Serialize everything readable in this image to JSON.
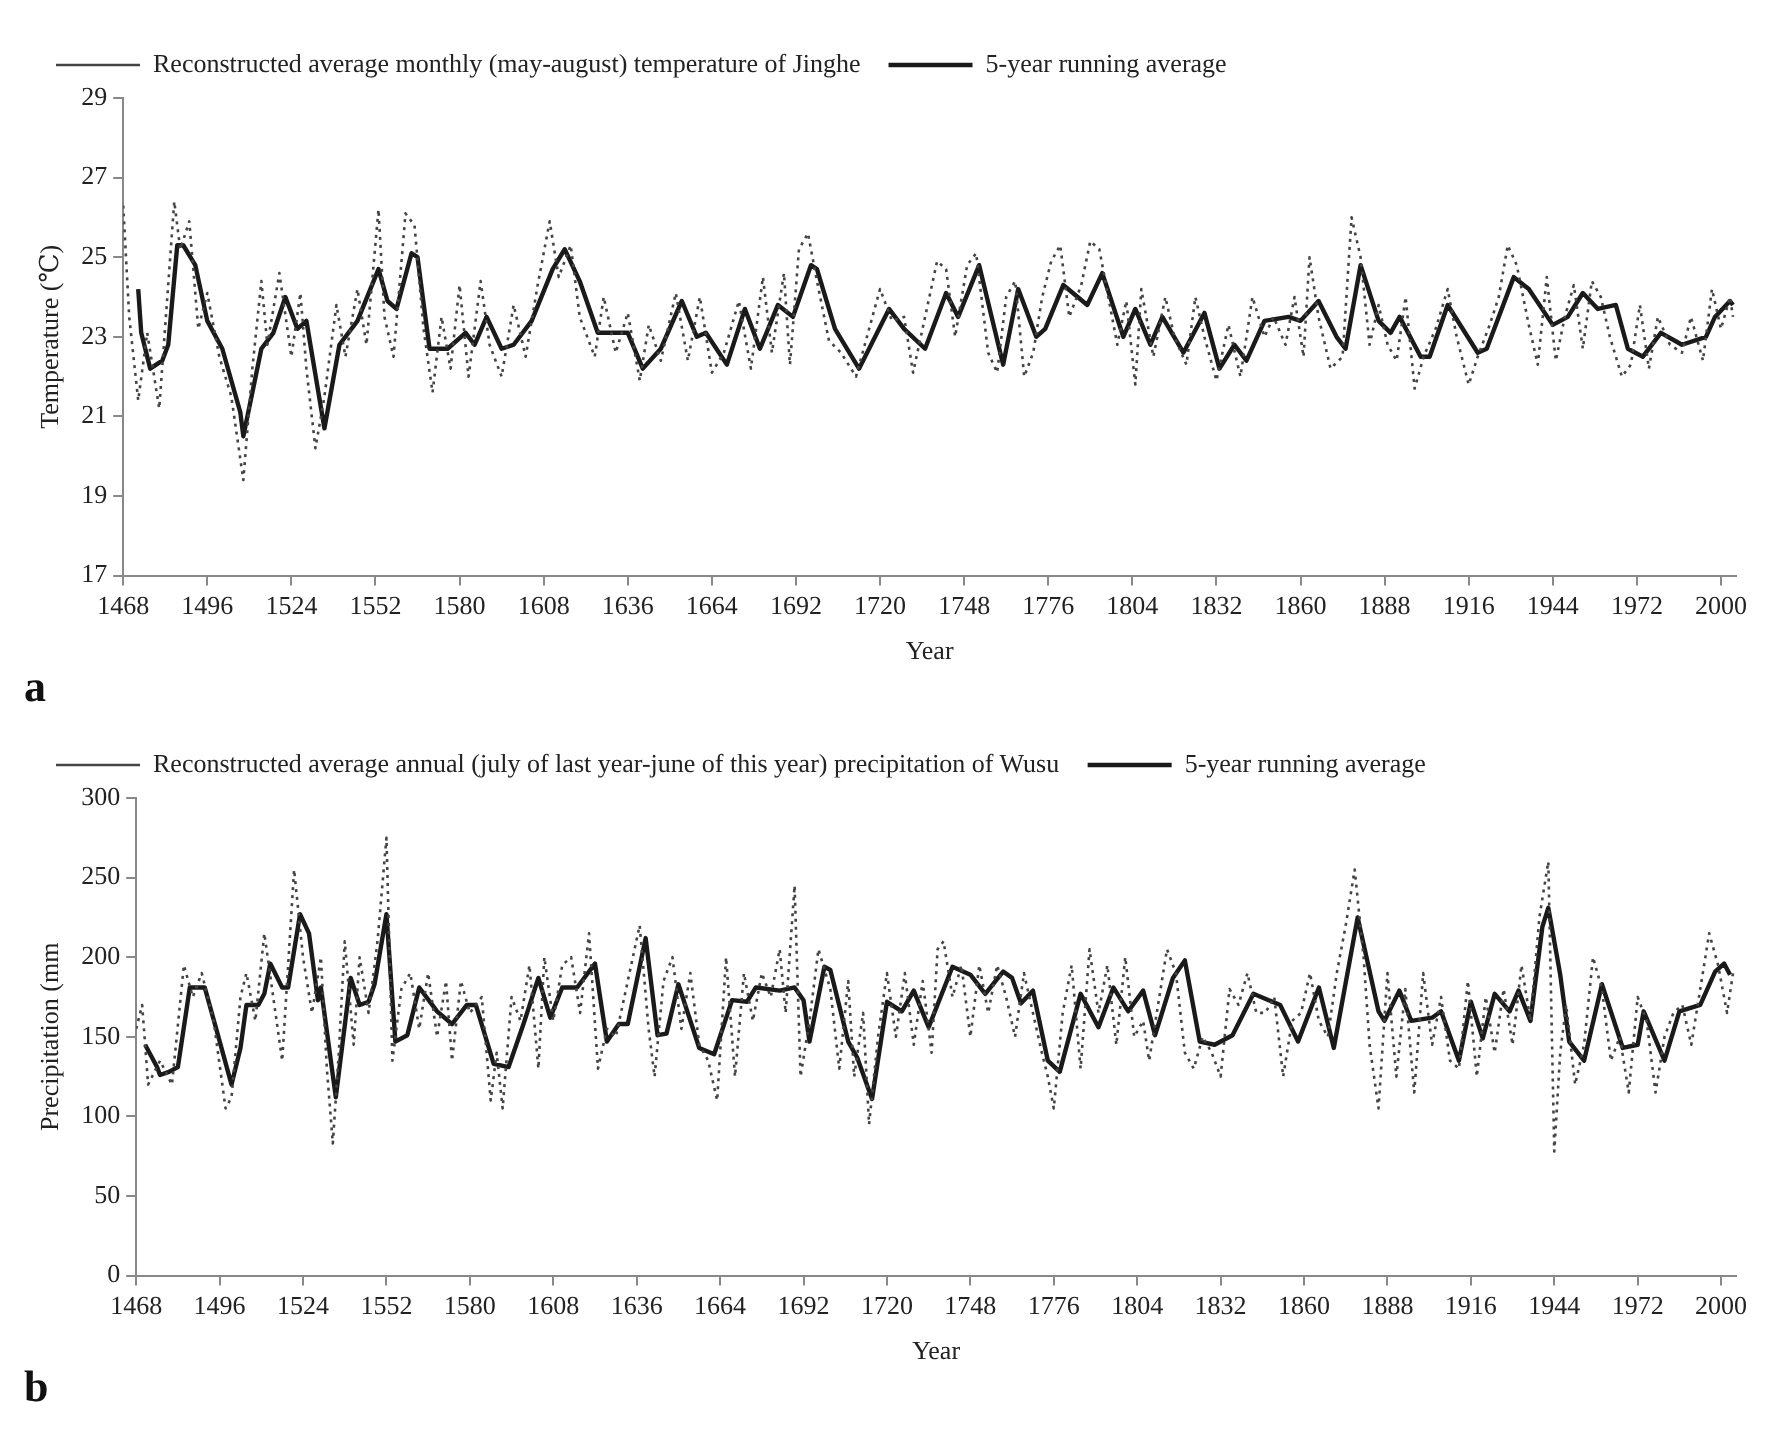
{
  "chart_data": [
    {
      "type": "line",
      "xlabel": "Year",
      "ylabel": "Temperature (℃)",
      "annotations": [
        "a"
      ],
      "xlim": [
        1468,
        2005
      ],
      "ylim": [
        17,
        29
      ],
      "xticks": [
        1468,
        1496,
        1524,
        1552,
        1580,
        1608,
        1636,
        1664,
        1692,
        1720,
        1748,
        1776,
        1804,
        1832,
        1860,
        1888,
        1916,
        1944,
        1972,
        2000
      ],
      "yticks": [
        17,
        19,
        21,
        23,
        25,
        27,
        29
      ],
      "legend": "top",
      "marker": "none",
      "series": [
        {
          "name": "Reconstructed average monthly (may-august) temperature of Jinghe",
          "color": "#444444",
          "line_style": "dotted",
          "x": [
            1468,
            1470,
            1473,
            1476,
            1480,
            1485,
            1487,
            1490,
            1493,
            1496,
            1500,
            1504,
            1508,
            1511,
            1514,
            1516,
            1520,
            1524,
            1527,
            1529,
            1532,
            1535,
            1539,
            1542,
            1546,
            1549,
            1553,
            1555,
            1558,
            1562,
            1565,
            1568,
            1571,
            1574,
            1577,
            1580,
            1583,
            1587,
            1590,
            1594,
            1598,
            1602,
            1606,
            1610,
            1613,
            1617,
            1620,
            1625,
            1628,
            1632,
            1636,
            1640,
            1643,
            1647,
            1652,
            1656,
            1660,
            1664,
            1668,
            1673,
            1677,
            1681,
            1684,
            1688,
            1690,
            1693,
            1696,
            1699,
            1703,
            1707,
            1712,
            1716,
            1720,
            1724,
            1728,
            1731,
            1735,
            1739,
            1742,
            1745,
            1749,
            1752,
            1756,
            1759,
            1762,
            1765,
            1768,
            1771,
            1774,
            1777,
            1780,
            1783,
            1787,
            1790,
            1793,
            1796,
            1799,
            1802,
            1805,
            1807,
            1811,
            1815,
            1818,
            1822,
            1825,
            1828,
            1832,
            1836,
            1840,
            1844,
            1848,
            1851,
            1855,
            1858,
            1861,
            1863,
            1866,
            1870,
            1874,
            1877,
            1880,
            1883,
            1886,
            1889,
            1892,
            1895,
            1898,
            1901,
            1905,
            1909,
            1912,
            1916,
            1919,
            1923,
            1926,
            1929,
            1932,
            1936,
            1939,
            1942,
            1945,
            1948,
            1951,
            1954,
            1957,
            1960,
            1963,
            1967,
            1970,
            1973,
            1976,
            1979,
            1983,
            1987,
            1990,
            1994,
            1997,
            2000,
            2003,
            2004
          ],
          "values": [
            26.3,
            23.5,
            21.4,
            23.1,
            21.2,
            26.4,
            25.2,
            25.9,
            23.2,
            24.1,
            22.5,
            21.5,
            19.4,
            22.2,
            24.4,
            22.8,
            24.6,
            22.5,
            24.1,
            22.2,
            20.2,
            21.5,
            23.8,
            22.5,
            24.2,
            22.8,
            26.2,
            23.5,
            22.5,
            26.1,
            25.8,
            23.2,
            21.6,
            23.5,
            22.2,
            24.3,
            22.0,
            24.4,
            22.8,
            22.0,
            23.8,
            22.5,
            24.3,
            25.9,
            24.5,
            25.3,
            23.5,
            22.5,
            24.0,
            22.6,
            23.6,
            21.9,
            23.3,
            22.4,
            24.1,
            22.4,
            24.0,
            22.1,
            22.6,
            23.9,
            22.2,
            24.5,
            22.6,
            24.6,
            22.3,
            25.2,
            25.6,
            24.4,
            22.9,
            22.6,
            22.0,
            23.1,
            24.2,
            23.4,
            23.5,
            22.1,
            23.5,
            24.9,
            24.7,
            23.0,
            24.8,
            25.1,
            22.6,
            22.1,
            24.0,
            24.4,
            22.0,
            22.6,
            24.0,
            24.9,
            25.3,
            23.5,
            24.3,
            25.4,
            25.2,
            24.0,
            22.8,
            23.9,
            21.8,
            24.2,
            22.5,
            24.0,
            23.0,
            22.3,
            24.0,
            23.0,
            21.9,
            23.3,
            22.0,
            24.0,
            23.0,
            23.5,
            22.8,
            24.0,
            22.5,
            25.0,
            23.5,
            22.2,
            22.5,
            26.0,
            25.0,
            22.8,
            23.8,
            22.8,
            22.4,
            24.0,
            21.7,
            22.5,
            23.2,
            24.2,
            23.0,
            21.8,
            22.5,
            23.3,
            24.0,
            25.3,
            24.8,
            23.3,
            22.3,
            24.5,
            22.4,
            23.5,
            24.3,
            22.7,
            24.4,
            24.0,
            23.0,
            22.0,
            22.3,
            23.8,
            22.2,
            23.5,
            22.8,
            22.6,
            23.5,
            22.4,
            24.2,
            23.2,
            24.0,
            23.5
          ]
        },
        {
          "name": "5-year running average",
          "color": "#1a1a1a",
          "line_style": "solid",
          "x": [
            1473,
            1474,
            1477,
            1481,
            1483,
            1486,
            1488,
            1492,
            1496,
            1501,
            1507,
            1508,
            1514,
            1518,
            1522,
            1526,
            1529,
            1535,
            1540,
            1546,
            1553,
            1556,
            1559,
            1564,
            1566,
            1570,
            1576,
            1582,
            1585,
            1589,
            1594,
            1598,
            1604,
            1611,
            1615,
            1620,
            1626,
            1636,
            1641,
            1647,
            1654,
            1659,
            1662,
            1669,
            1675,
            1680,
            1686,
            1691,
            1697,
            1699,
            1705,
            1713,
            1723,
            1728,
            1735,
            1742,
            1746,
            1753,
            1761,
            1766,
            1772,
            1775,
            1781,
            1789,
            1794,
            1801,
            1805,
            1810,
            1814,
            1821,
            1828,
            1833,
            1838,
            1842,
            1848,
            1856,
            1860,
            1866,
            1872,
            1875,
            1880,
            1886,
            1890,
            1893,
            1900,
            1903,
            1909,
            1919,
            1922,
            1931,
            1936,
            1944,
            1949,
            1954,
            1959,
            1965,
            1969,
            1974,
            1980,
            1987,
            1995,
            1998,
            2003,
            2004
          ],
          "values": [
            24.2,
            23.1,
            22.2,
            22.4,
            22.8,
            25.3,
            25.3,
            24.8,
            23.4,
            22.7,
            21.1,
            20.5,
            22.7,
            23.1,
            24.0,
            23.2,
            23.4,
            20.7,
            22.8,
            23.4,
            24.7,
            23.9,
            23.7,
            25.1,
            25.0,
            22.7,
            22.7,
            23.1,
            22.8,
            23.5,
            22.7,
            22.8,
            23.4,
            24.7,
            25.2,
            24.4,
            23.1,
            23.1,
            22.2,
            22.7,
            23.9,
            23.0,
            23.1,
            22.3,
            23.7,
            22.7,
            23.8,
            23.5,
            24.8,
            24.7,
            23.2,
            22.2,
            23.7,
            23.2,
            22.7,
            24.1,
            23.5,
            24.8,
            22.3,
            24.2,
            23.0,
            23.2,
            24.3,
            23.8,
            24.6,
            23.0,
            23.7,
            22.8,
            23.5,
            22.6,
            23.6,
            22.2,
            22.8,
            22.4,
            23.4,
            23.5,
            23.4,
            23.9,
            23.0,
            22.7,
            24.8,
            23.4,
            23.1,
            23.5,
            22.5,
            22.5,
            23.8,
            22.6,
            22.7,
            24.5,
            24.2,
            23.3,
            23.5,
            24.1,
            23.7,
            23.8,
            22.7,
            22.5,
            23.1,
            22.8,
            23.0,
            23.5,
            23.9,
            23.8
          ]
        }
      ]
    },
    {
      "type": "line",
      "xlabel": "Year",
      "ylabel": "Precipitation (mm",
      "annotations": [
        "b"
      ],
      "xlim": [
        1468,
        2005
      ],
      "ylim": [
        0,
        300
      ],
      "xticks": [
        1468,
        1496,
        1524,
        1552,
        1580,
        1608,
        1636,
        1664,
        1692,
        1720,
        1748,
        1776,
        1804,
        1832,
        1860,
        1888,
        1916,
        1944,
        1972,
        2000
      ],
      "yticks": [
        0,
        50,
        100,
        150,
        200,
        250,
        300
      ],
      "legend": "top",
      "marker": "none",
      "series": [
        {
          "name": "Reconstructed average annual (july of last year-june of this year) precipitation of Wusu",
          "color": "#444444",
          "line_style": "dotted",
          "x": [
            1468,
            1470,
            1472,
            1476,
            1480,
            1484,
            1487,
            1490,
            1494,
            1498,
            1500,
            1503,
            1505,
            1508,
            1511,
            1514,
            1517,
            1521,
            1524,
            1527,
            1530,
            1532,
            1534,
            1536,
            1538,
            1541,
            1543,
            1546,
            1549,
            1552,
            1554,
            1557,
            1560,
            1563,
            1566,
            1569,
            1572,
            1574,
            1577,
            1580,
            1584,
            1587,
            1589,
            1591,
            1594,
            1597,
            1600,
            1603,
            1605,
            1608,
            1611,
            1614,
            1617,
            1620,
            1623,
            1626,
            1629,
            1633,
            1637,
            1640,
            1642,
            1645,
            1648,
            1651,
            1654,
            1657,
            1660,
            1663,
            1666,
            1669,
            1672,
            1675,
            1678,
            1681,
            1684,
            1686,
            1689,
            1691,
            1694,
            1697,
            1701,
            1704,
            1707,
            1709,
            1712,
            1714,
            1717,
            1720,
            1723,
            1726,
            1729,
            1732,
            1735,
            1737,
            1739,
            1742,
            1745,
            1748,
            1751,
            1754,
            1757,
            1760,
            1763,
            1766,
            1769,
            1772,
            1774,
            1776,
            1779,
            1782,
            1785,
            1788,
            1791,
            1794,
            1797,
            1800,
            1803,
            1806,
            1808,
            1811,
            1814,
            1817,
            1820,
            1823,
            1826,
            1829,
            1832,
            1835,
            1838,
            1841,
            1844,
            1847,
            1850,
            1853,
            1856,
            1859,
            1862,
            1865,
            1868,
            1871,
            1874,
            1877,
            1880,
            1882,
            1885,
            1888,
            1891,
            1894,
            1897,
            1900,
            1903,
            1906,
            1909,
            1912,
            1915,
            1918,
            1921,
            1924,
            1927,
            1930,
            1933,
            1936,
            1939,
            1942,
            1944,
            1946,
            1948,
            1951,
            1954,
            1957,
            1960,
            1963,
            1966,
            1969,
            1972,
            1975,
            1978,
            1981,
            1984,
            1987,
            1990,
            1993,
            1996,
            1999,
            2002,
            2004
          ],
          "values": [
            155,
            170,
            120,
            135,
            120,
            195,
            175,
            190,
            160,
            105,
            112,
            175,
            190,
            160,
            215,
            175,
            135,
            255,
            200,
            165,
            200,
            130,
            83,
            140,
            210,
            145,
            200,
            165,
            210,
            275,
            135,
            180,
            190,
            155,
            190,
            150,
            185,
            135,
            185,
            165,
            175,
            110,
            140,
            105,
            175,
            160,
            195,
            130,
            200,
            160,
            195,
            200,
            165,
            215,
            130,
            155,
            150,
            185,
            220,
            155,
            125,
            185,
            200,
            155,
            190,
            145,
            135,
            110,
            200,
            125,
            190,
            160,
            190,
            175,
            205,
            165,
            245,
            125,
            160,
            205,
            180,
            130,
            185,
            125,
            165,
            95,
            150,
            190,
            150,
            190,
            145,
            185,
            140,
            205,
            210,
            175,
            195,
            150,
            195,
            165,
            195,
            175,
            150,
            190,
            165,
            140,
            125,
            105,
            165,
            195,
            130,
            205,
            165,
            195,
            145,
            200,
            150,
            160,
            135,
            170,
            205,
            190,
            140,
            130,
            150,
            140,
            125,
            180,
            170,
            190,
            165,
            165,
            175,
            125,
            160,
            165,
            190,
            160,
            150,
            190,
            220,
            255,
            200,
            145,
            105,
            190,
            125,
            180,
            115,
            190,
            145,
            175,
            135,
            130,
            185,
            125,
            175,
            140,
            180,
            145,
            195,
            160,
            225,
            260,
            78,
            140,
            170,
            120,
            145,
            200,
            180,
            135,
            150,
            115,
            175,
            160,
            115,
            150,
            165,
            170,
            145,
            180,
            215,
            195,
            165,
            190
          ]
        },
        {
          "name": "5-year running average",
          "color": "#1a1a1a",
          "line_style": "solid",
          "x": [
            1471,
            1475,
            1476,
            1479,
            1482,
            1486,
            1491,
            1495,
            1500,
            1503,
            1505,
            1509,
            1511,
            1513,
            1517,
            1519,
            1523,
            1526,
            1529,
            1530,
            1535,
            1540,
            1543,
            1546,
            1548,
            1552,
            1555,
            1559,
            1563,
            1569,
            1574,
            1579,
            1582,
            1588,
            1593,
            1598,
            1603,
            1607,
            1611,
            1616,
            1622,
            1626,
            1630,
            1633,
            1639,
            1643,
            1646,
            1650,
            1657,
            1662,
            1668,
            1673,
            1676,
            1684,
            1689,
            1692,
            1694,
            1699,
            1701,
            1707,
            1710,
            1715,
            1720,
            1725,
            1729,
            1734,
            1742,
            1748,
            1753,
            1759,
            1762,
            1765,
            1769,
            1774,
            1778,
            1785,
            1791,
            1796,
            1801,
            1806,
            1810,
            1816,
            1820,
            1825,
            1830,
            1836,
            1843,
            1852,
            1858,
            1865,
            1870,
            1878,
            1885,
            1887,
            1892,
            1896,
            1903,
            1906,
            1912,
            1916,
            1920,
            1924,
            1929,
            1932,
            1936,
            1940,
            1942,
            1946,
            1949,
            1954,
            1960,
            1967,
            1972,
            1974,
            1981,
            1986,
            1993,
            1998,
            2001,
            2003
          ],
          "values": [
            145,
            131,
            126,
            128,
            131,
            181,
            181,
            154,
            120,
            143,
            170,
            170,
            177,
            196,
            181,
            181,
            227,
            215,
            173,
            181,
            112,
            187,
            170,
            172,
            183,
            227,
            147,
            151,
            181,
            166,
            158,
            170,
            170,
            133,
            131,
            158,
            187,
            162,
            181,
            181,
            196,
            147,
            158,
            158,
            212,
            151,
            152,
            183,
            143,
            139,
            173,
            172,
            181,
            179,
            181,
            173,
            147,
            194,
            192,
            147,
            137,
            111,
            172,
            166,
            179,
            156,
            194,
            189,
            177,
            191,
            187,
            171,
            179,
            135,
            128,
            177,
            156,
            181,
            166,
            179,
            151,
            187,
            198,
            147,
            145,
            151,
            177,
            170,
            147,
            181,
            143,
            225,
            166,
            160,
            179,
            160,
            162,
            166,
            135,
            172,
            149,
            177,
            166,
            179,
            160,
            219,
            231,
            189,
            147,
            135,
            183,
            143,
            145,
            166,
            135,
            166,
            170,
            191,
            196,
            189
          ]
        }
      ]
    }
  ]
}
